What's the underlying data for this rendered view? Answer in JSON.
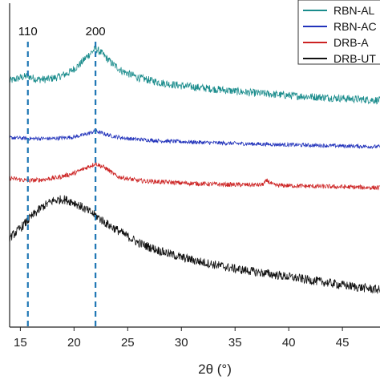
{
  "chart_data": {
    "type": "line",
    "title": "",
    "xlabel": "2θ (°)",
    "ylabel": "",
    "xlim": [
      14,
      48.5
    ],
    "x_ticks": [
      15,
      20,
      25,
      30,
      35,
      40,
      45
    ],
    "grid": false,
    "legend_position": "top-right",
    "reference_lines": [
      {
        "label": "110",
        "x": 15.7,
        "color": "#1f77b4"
      },
      {
        "label": "200",
        "x": 22.0,
        "color": "#1f77b4"
      }
    ],
    "series": [
      {
        "name": "RBN-AL",
        "color": "#1a8c8c",
        "x": [
          14,
          15,
          15.7,
          16.5,
          17.5,
          18.5,
          19.5,
          20.5,
          21.2,
          22,
          22.6,
          23.5,
          24.5,
          26,
          28,
          30,
          33,
          36,
          40,
          44,
          48.5
        ],
        "y": [
          0.76,
          0.77,
          0.775,
          0.765,
          0.765,
          0.772,
          0.785,
          0.81,
          0.835,
          0.86,
          0.845,
          0.815,
          0.79,
          0.77,
          0.755,
          0.745,
          0.735,
          0.725,
          0.715,
          0.708,
          0.7
        ]
      },
      {
        "name": "RBN-AC",
        "color": "#2233bb",
        "x": [
          14,
          16,
          18,
          20,
          21,
          22,
          22.5,
          23.5,
          25,
          28,
          32,
          36,
          40,
          44,
          48.5
        ],
        "y": [
          0.585,
          0.582,
          0.582,
          0.587,
          0.594,
          0.605,
          0.6,
          0.59,
          0.582,
          0.575,
          0.57,
          0.566,
          0.563,
          0.56,
          0.557
        ]
      },
      {
        "name": "DRB-A",
        "color": "#cc2222",
        "x": [
          14,
          15.7,
          17,
          18.5,
          20,
          21,
          22,
          23,
          24,
          26,
          30,
          34,
          37.5,
          38,
          38.6,
          42,
          46,
          48.5
        ],
        "y": [
          0.46,
          0.452,
          0.455,
          0.462,
          0.475,
          0.49,
          0.505,
          0.49,
          0.465,
          0.452,
          0.445,
          0.44,
          0.439,
          0.452,
          0.438,
          0.435,
          0.432,
          0.43
        ]
      },
      {
        "name": "DRB-UT",
        "color": "#111111",
        "x": [
          14,
          15,
          16,
          17,
          18,
          19,
          20,
          21,
          22,
          23,
          24,
          26,
          28,
          30,
          32,
          35,
          38,
          41,
          44,
          46,
          48.5
        ],
        "y": [
          0.275,
          0.305,
          0.34,
          0.37,
          0.39,
          0.395,
          0.385,
          0.365,
          0.345,
          0.32,
          0.3,
          0.26,
          0.235,
          0.215,
          0.2,
          0.18,
          0.165,
          0.15,
          0.135,
          0.125,
          0.115
        ]
      }
    ]
  }
}
